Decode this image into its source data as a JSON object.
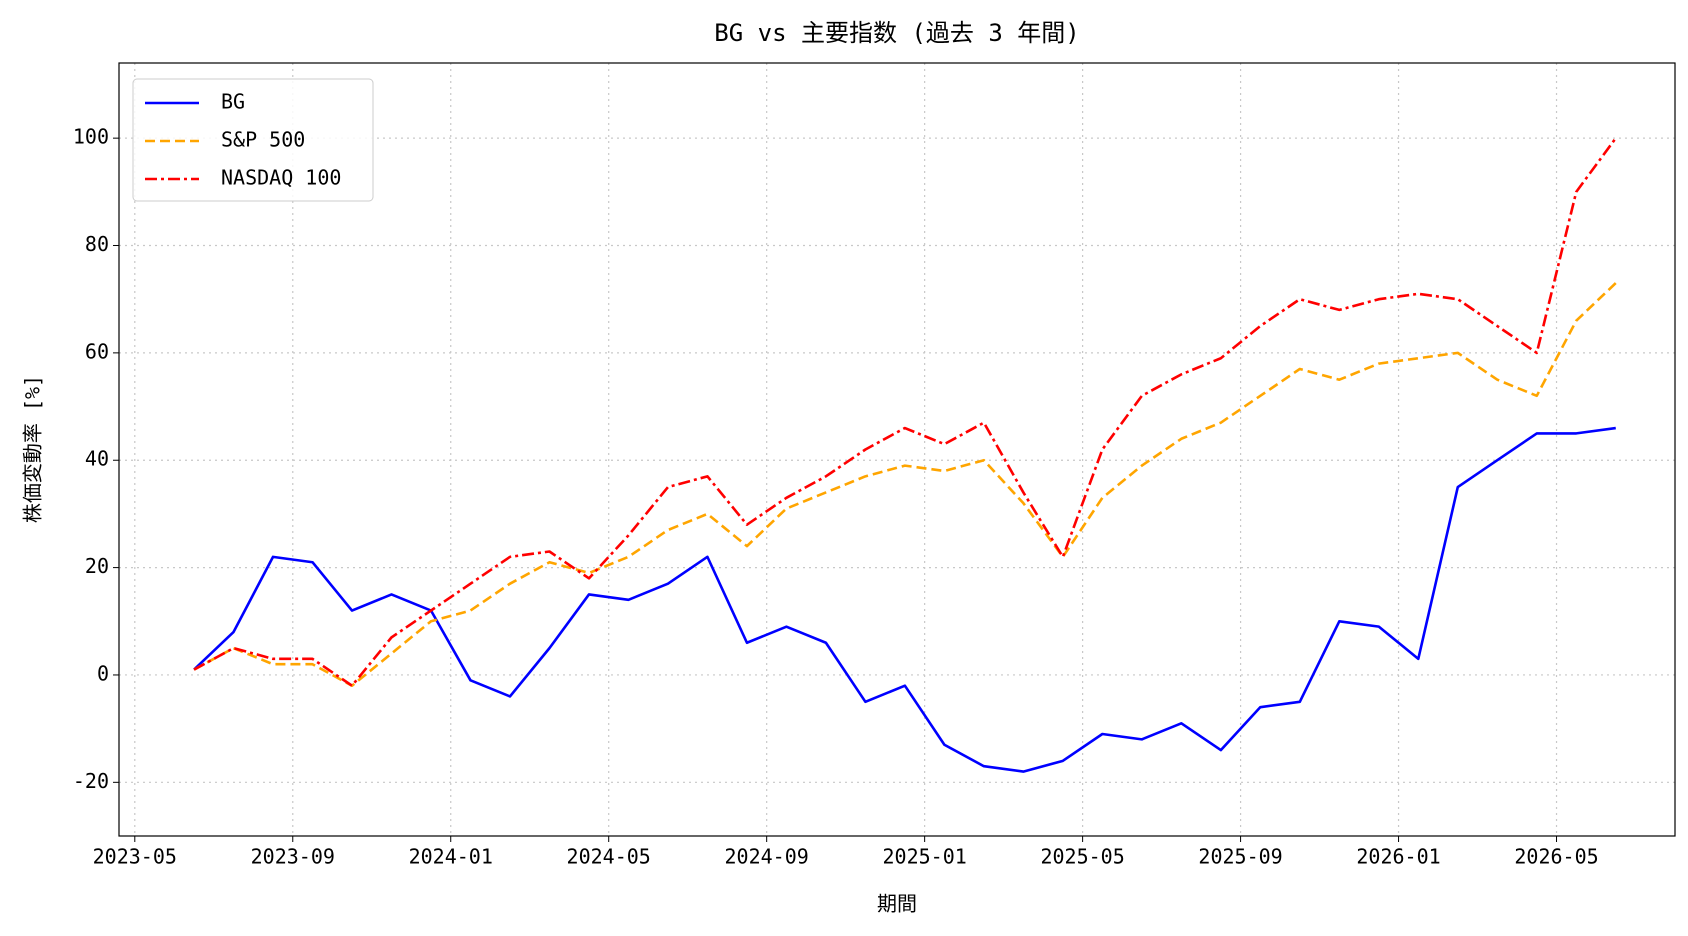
{
  "chart_data": {
    "type": "line",
    "title": "BG vs 主要指数 (過去 3 年間)",
    "x_label": "期間",
    "y_label": "株価変動率 [%]",
    "x": [
      "2023-06",
      "2023-07",
      "2023-08",
      "2023-09",
      "2023-10",
      "2023-11",
      "2023-12",
      "2024-01",
      "2024-02",
      "2024-03",
      "2024-04",
      "2024-05",
      "2024-06",
      "2024-07",
      "2024-08",
      "2024-09",
      "2024-10",
      "2024-11",
      "2024-12",
      "2025-01",
      "2025-02",
      "2025-03",
      "2025-04",
      "2025-05",
      "2025-06",
      "2025-07",
      "2025-08",
      "2025-09",
      "2025-10",
      "2025-11",
      "2025-12",
      "2026-01",
      "2026-02",
      "2026-03",
      "2026-04",
      "2026-05",
      "2026-06"
    ],
    "series": [
      {
        "name": "BG",
        "color": "#0000ff",
        "linestyle": "solid",
        "values": [
          1,
          8,
          22,
          21,
          12,
          15,
          12,
          -1,
          -4,
          5,
          15,
          14,
          17,
          22,
          6,
          9,
          6,
          -5,
          -2,
          -13,
          -17,
          -18,
          -16,
          -11,
          -12,
          -9,
          -14,
          -6,
          -5,
          10,
          9,
          3,
          35,
          40,
          45,
          45,
          46
        ]
      },
      {
        "name": "S&P 500",
        "color": "#ffa500",
        "linestyle": "dashed",
        "values": [
          1,
          5,
          2,
          2,
          -2,
          4,
          10,
          12,
          17,
          21,
          19,
          22,
          27,
          30,
          24,
          31,
          34,
          37,
          39,
          38,
          40,
          32,
          22,
          33,
          39,
          44,
          47,
          52,
          57,
          55,
          58,
          59,
          60,
          55,
          52,
          66,
          73
        ]
      },
      {
        "name": "NASDAQ 100",
        "color": "#ff0000",
        "linestyle": "dashdot",
        "values": [
          1,
          5,
          3,
          3,
          -2,
          7,
          12,
          17,
          22,
          23,
          18,
          26,
          35,
          37,
          28,
          33,
          37,
          42,
          46,
          43,
          47,
          34,
          22,
          42,
          52,
          56,
          59,
          65,
          70,
          68,
          70,
          71,
          70,
          65,
          60,
          90,
          100
        ]
      }
    ],
    "xlim": [
      "2023-04",
      "2026-08"
    ],
    "xticks": [
      "2023-05",
      "2023-09",
      "2024-01",
      "2024-05",
      "2024-09",
      "2025-01",
      "2025-05",
      "2025-09",
      "2026-01",
      "2026-05"
    ],
    "ylim": [
      -30,
      114
    ],
    "yticks": [
      -20,
      0,
      20,
      40,
      60,
      80,
      100
    ],
    "grid": true,
    "legend": "upper left"
  }
}
